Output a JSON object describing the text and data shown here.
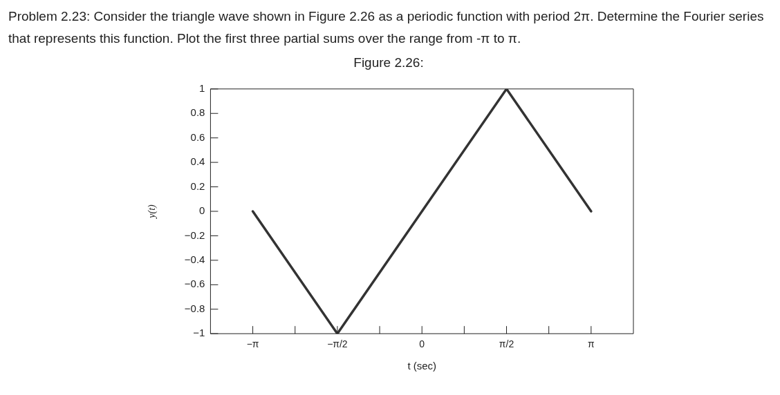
{
  "chart_data": {
    "type": "line",
    "title": "Figure 2.26:",
    "annotations": [
      "Problem 2.23: Consider the triangle wave shown in Figure 2.26 as a periodic function with period 2π. Determine the Fourier series that represents this function. Plot the first three partial sums over the range from -π to π."
    ],
    "xlabel": "t (sec)",
    "ylabel": "y(t)",
    "x": [
      -3.1416,
      -1.5708,
      1.5708,
      3.1416
    ],
    "series": [
      {
        "color": "#333333",
        "values": [
          0,
          -1,
          1,
          0
        ]
      }
    ],
    "xlim": [
      -3.927,
      3.927
    ],
    "xticks": [
      {
        "value": -3.1416,
        "label": "−π"
      },
      {
        "value": -2.3562,
        "label": null
      },
      {
        "value": -1.5708,
        "label": "−π/2"
      },
      {
        "value": -0.7854,
        "label": null
      },
      0,
      {
        "value": 0.7854,
        "label": null
      },
      {
        "value": 1.5708,
        "label": "π/2"
      },
      {
        "value": 2.3562,
        "label": null
      },
      {
        "value": 3.1416,
        "label": "π"
      }
    ],
    "ylim": [
      -1,
      1
    ],
    "yticks": [
      {
        "value": -1,
        "label": "−1"
      },
      {
        "value": -0.8,
        "label": "−0.8"
      },
      {
        "value": -0.6,
        "label": "−0.6"
      },
      {
        "value": -0.4,
        "label": "−0.4"
      },
      {
        "value": -0.2,
        "label": "−0.2"
      },
      0,
      0.2,
      0.4,
      0.6,
      0.8,
      1
    ],
    "grid": false,
    "legend": false
  }
}
